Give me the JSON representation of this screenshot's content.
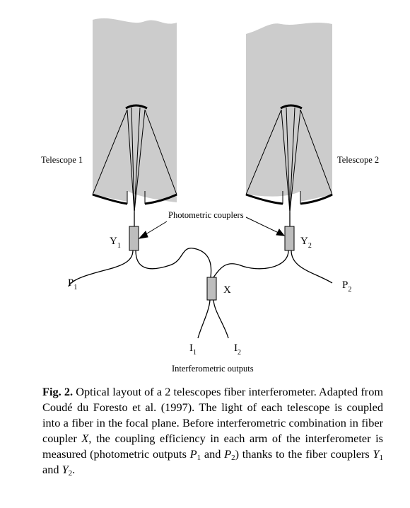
{
  "figure": {
    "labels": {
      "telescope1": "Telescope 1",
      "telescope2": "Telescope 2",
      "photometric_couplers": "Photometric couplers",
      "y1_base": "Y",
      "y1_sub": "1",
      "y2_base": "Y",
      "y2_sub": "2",
      "x": "X",
      "p1_base": "P",
      "p1_sub": "1",
      "p2_base": "P",
      "p2_sub": "2",
      "i1_base": "I",
      "i1_sub": "1",
      "i2_base": "I",
      "i2_sub": "2",
      "interferometric_outputs": "Interferometric outputs"
    },
    "colors": {
      "telescope_fill": "#cccccc",
      "coupler_fill": "#bdbdbd",
      "line": "#000000"
    }
  },
  "caption": {
    "label": "Fig. 2.",
    "s1": " Optical layout of a 2 telescopes fiber interferometer. Adapted from Coudé du Foresto et al. (1997). The light of each telescope is coupled into a fiber in the focal plane. Before interferometric combination in fiber coupler ",
    "x": "X",
    "s2": ", the coupling efficiency in each arm of the interferometer is measured (photometric outputs ",
    "p1_base": "P",
    "p1_sub": "1",
    "s3": " and ",
    "p2_base": "P",
    "p2_sub": "2",
    "s4": ") thanks to the fiber couplers ",
    "y1_base": "Y",
    "y1_sub": "1",
    "s5": " and ",
    "y2_base": "Y",
    "y2_sub": "2",
    "s6": "."
  }
}
